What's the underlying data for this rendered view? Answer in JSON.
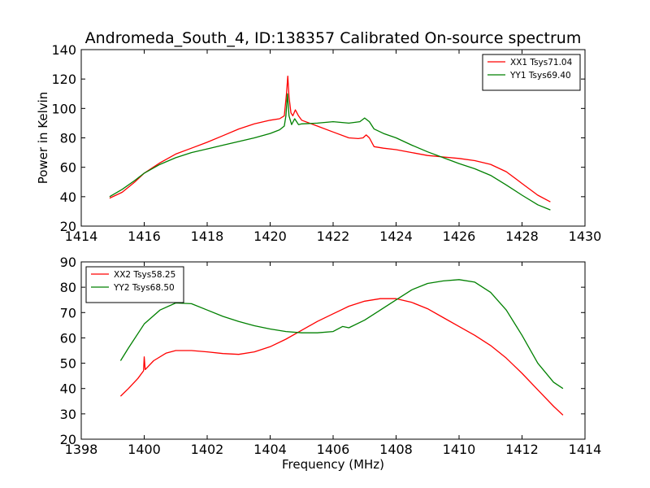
{
  "title": "Andromeda_South_4, ID:138357 Calibrated On-source spectrum",
  "chart_data": [
    {
      "type": "line",
      "ylabel": "Power in Kelvin",
      "xlabel": "",
      "xlim": [
        1414,
        1430
      ],
      "ylim": [
        20,
        140
      ],
      "xticks": [
        1414,
        1416,
        1418,
        1420,
        1422,
        1424,
        1426,
        1428,
        1430
      ],
      "yticks": [
        20,
        40,
        60,
        80,
        100,
        120,
        140
      ],
      "grid": false,
      "legend_position": "top-right",
      "series": [
        {
          "name": "XX1 Tsys71.04",
          "color": "#ff0000",
          "points": [
            [
              1414.9,
              39
            ],
            [
              1415.3,
              43
            ],
            [
              1415.7,
              50
            ],
            [
              1416,
              56
            ],
            [
              1416.5,
              63
            ],
            [
              1417,
              69
            ],
            [
              1417.5,
              73
            ],
            [
              1418,
              77
            ],
            [
              1418.5,
              81.5
            ],
            [
              1419,
              86
            ],
            [
              1419.5,
              89.5
            ],
            [
              1420,
              92
            ],
            [
              1420.3,
              93
            ],
            [
              1420.45,
              95
            ],
            [
              1420.52,
              110
            ],
            [
              1420.56,
              122
            ],
            [
              1420.6,
              108
            ],
            [
              1420.66,
              97
            ],
            [
              1420.72,
              95
            ],
            [
              1420.8,
              99
            ],
            [
              1420.9,
              95
            ],
            [
              1421,
              92
            ],
            [
              1421.5,
              88
            ],
            [
              1422,
              84
            ],
            [
              1422.5,
              80
            ],
            [
              1422.8,
              79.5
            ],
            [
              1422.95,
              80
            ],
            [
              1423.05,
              82
            ],
            [
              1423.15,
              80
            ],
            [
              1423.3,
              74
            ],
            [
              1423.6,
              73
            ],
            [
              1424,
              72
            ],
            [
              1424.5,
              70
            ],
            [
              1425,
              68
            ],
            [
              1425.5,
              67
            ],
            [
              1426,
              66
            ],
            [
              1426.5,
              64.5
            ],
            [
              1427,
              62
            ],
            [
              1427.5,
              57
            ],
            [
              1428,
              49
            ],
            [
              1428.5,
              41
            ],
            [
              1428.9,
              36.5
            ]
          ]
        },
        {
          "name": "YY1 Tsys69.40",
          "color": "#008000",
          "points": [
            [
              1414.9,
              40
            ],
            [
              1415.3,
              45
            ],
            [
              1415.7,
              51
            ],
            [
              1416,
              56
            ],
            [
              1416.5,
              62
            ],
            [
              1417,
              66.5
            ],
            [
              1417.5,
              70
            ],
            [
              1418,
              72.5
            ],
            [
              1418.5,
              75
            ],
            [
              1419,
              77.5
            ],
            [
              1419.5,
              80
            ],
            [
              1420,
              83
            ],
            [
              1420.3,
              85.5
            ],
            [
              1420.45,
              88
            ],
            [
              1420.5,
              95
            ],
            [
              1420.55,
              110
            ],
            [
              1420.6,
              95
            ],
            [
              1420.68,
              89
            ],
            [
              1420.78,
              93
            ],
            [
              1420.9,
              89
            ],
            [
              1421,
              89.5
            ],
            [
              1421.5,
              90
            ],
            [
              1422,
              91
            ],
            [
              1422.5,
              90
            ],
            [
              1422.85,
              91
            ],
            [
              1423,
              93.5
            ],
            [
              1423.15,
              91
            ],
            [
              1423.3,
              86
            ],
            [
              1423.6,
              83
            ],
            [
              1424,
              80
            ],
            [
              1424.5,
              75
            ],
            [
              1425,
              70.5
            ],
            [
              1425.5,
              66.5
            ],
            [
              1426,
              62.5
            ],
            [
              1426.5,
              59
            ],
            [
              1427,
              54.5
            ],
            [
              1427.5,
              48
            ],
            [
              1428,
              41
            ],
            [
              1428.5,
              34.5
            ],
            [
              1428.9,
              31
            ]
          ]
        }
      ]
    },
    {
      "type": "line",
      "xlabel": "Frequency (MHz)",
      "ylabel": "",
      "xlim": [
        1398,
        1414
      ],
      "ylim": [
        20,
        90
      ],
      "xticks": [
        1398,
        1400,
        1402,
        1404,
        1406,
        1408,
        1410,
        1412,
        1414
      ],
      "yticks": [
        20,
        30,
        40,
        50,
        60,
        70,
        80,
        90
      ],
      "grid": false,
      "legend_position": "top-left",
      "series": [
        {
          "name": "XX2 Tsys58.25",
          "color": "#ff0000",
          "points": [
            [
              1399.25,
              37
            ],
            [
              1399.5,
              40
            ],
            [
              1399.8,
              44
            ],
            [
              1399.98,
              47
            ],
            [
              1400,
              52.5
            ],
            [
              1400.03,
              47.5
            ],
            [
              1400.3,
              51
            ],
            [
              1400.7,
              54
            ],
            [
              1401,
              55
            ],
            [
              1401.5,
              55
            ],
            [
              1402,
              54.5
            ],
            [
              1402.5,
              53.8
            ],
            [
              1403,
              53.5
            ],
            [
              1403.5,
              54.5
            ],
            [
              1404,
              56.5
            ],
            [
              1404.5,
              59.5
            ],
            [
              1405,
              63
            ],
            [
              1405.5,
              66.5
            ],
            [
              1406,
              69.5
            ],
            [
              1406.25,
              71
            ],
            [
              1406.5,
              72.5
            ],
            [
              1407,
              74.5
            ],
            [
              1407.5,
              75.5
            ],
            [
              1408,
              75.5
            ],
            [
              1408.5,
              74
            ],
            [
              1409,
              71.5
            ],
            [
              1409.5,
              68
            ],
            [
              1410,
              64.5
            ],
            [
              1410.5,
              61
            ],
            [
              1411,
              57
            ],
            [
              1411.5,
              52
            ],
            [
              1412,
              46
            ],
            [
              1412.5,
              39.5
            ],
            [
              1413,
              33
            ],
            [
              1413.3,
              29.5
            ]
          ]
        },
        {
          "name": "YY2 Tsys68.50",
          "color": "#008000",
          "points": [
            [
              1399.25,
              51
            ],
            [
              1399.5,
              56
            ],
            [
              1400,
              65.5
            ],
            [
              1400.5,
              71
            ],
            [
              1401,
              73.8
            ],
            [
              1401.5,
              73.5
            ],
            [
              1402,
              71
            ],
            [
              1402.5,
              68.5
            ],
            [
              1403,
              66.5
            ],
            [
              1403.5,
              64.8
            ],
            [
              1404,
              63.5
            ],
            [
              1404.5,
              62.5
            ],
            [
              1405,
              62
            ],
            [
              1405.5,
              62
            ],
            [
              1406,
              62.5
            ],
            [
              1406.3,
              64.5
            ],
            [
              1406.5,
              64
            ],
            [
              1407,
              67
            ],
            [
              1407.5,
              71
            ],
            [
              1408,
              75
            ],
            [
              1408.5,
              79
            ],
            [
              1409,
              81.5
            ],
            [
              1409.5,
              82.5
            ],
            [
              1410,
              83
            ],
            [
              1410.5,
              82
            ],
            [
              1411,
              78
            ],
            [
              1411.5,
              71
            ],
            [
              1412,
              61
            ],
            [
              1412.5,
              50
            ],
            [
              1413,
              42.5
            ],
            [
              1413.3,
              40
            ]
          ]
        }
      ]
    }
  ]
}
